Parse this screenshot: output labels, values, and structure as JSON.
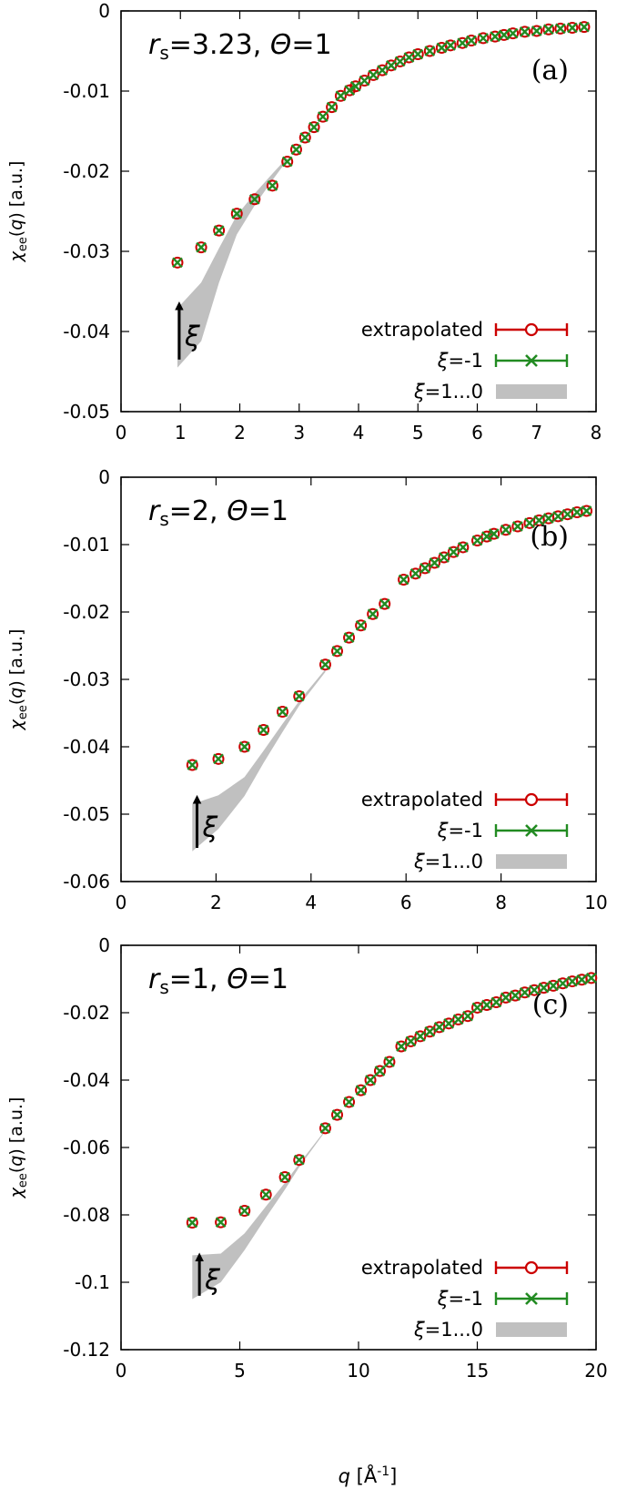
{
  "figure": {
    "x_axis_label": "q [Å⁻¹]",
    "colors": {
      "extrapolated": "#cc0000",
      "xi_minus1": "#228b22",
      "band": "#c0c0c0",
      "arrow": "#000000"
    }
  },
  "chart_data": [
    {
      "type": "scatter",
      "panel_label": "(a)",
      "annotation": "rs=3.23, Θ=1",
      "annotation_parts": {
        "r": "r",
        "s": "s",
        "rest": "=3.23, ",
        "theta": "Θ",
        "tail": "=1"
      },
      "arrow_label": "ξ",
      "ylabel": "χee(q) [a.u.]",
      "xlabel": "",
      "xlim": [
        0,
        8
      ],
      "ylim": [
        -0.05,
        0
      ],
      "xticks": [
        "0",
        "1",
        "2",
        "3",
        "4",
        "5",
        "6",
        "7",
        "8"
      ],
      "yticks": [
        "0",
        "-0.01",
        "-0.02",
        "-0.03",
        "-0.04",
        "-0.05"
      ],
      "grid": false,
      "legend_position": "bottom-right",
      "legend": [
        {
          "label": "extrapolated"
        },
        {
          "label": "ξ=-1"
        },
        {
          "label": "ξ=1...0"
        }
      ],
      "series": [
        {
          "name": "extrapolated",
          "marker": "circle",
          "x": [
            0.95,
            1.35,
            1.65,
            1.95,
            2.25,
            2.55,
            2.8,
            2.95,
            3.1,
            3.25,
            3.4,
            3.55,
            3.7,
            3.85,
            3.95,
            4.1,
            4.25,
            4.4,
            4.55,
            4.7,
            4.85,
            5.0,
            5.2,
            5.4,
            5.55,
            5.75,
            5.9,
            6.1,
            6.3,
            6.45,
            6.6,
            6.8,
            7.0,
            7.2,
            7.4,
            7.6,
            7.8
          ],
          "y": [
            -0.0314,
            -0.0295,
            -0.0274,
            -0.0253,
            -0.0235,
            -0.0218,
            -0.0188,
            -0.0173,
            -0.0158,
            -0.0145,
            -0.0132,
            -0.012,
            -0.0106,
            -0.0099,
            -0.0094,
            -0.0087,
            -0.008,
            -0.0074,
            -0.0068,
            -0.0063,
            -0.0058,
            -0.0054,
            -0.005,
            -0.0046,
            -0.0043,
            -0.004,
            -0.0037,
            -0.0034,
            -0.0032,
            -0.003,
            -0.0028,
            -0.0026,
            -0.0025,
            -0.0023,
            -0.0022,
            -0.0021,
            -0.002
          ]
        },
        {
          "name": "ξ=-1",
          "marker": "x",
          "x": [
            0.95,
            1.35,
            1.65,
            1.95,
            2.25,
            2.55,
            2.8,
            2.95,
            3.1,
            3.25,
            3.4,
            3.55,
            3.7,
            3.85,
            3.95,
            4.1,
            4.25,
            4.4,
            4.55,
            4.7,
            4.85,
            5.0,
            5.2,
            5.4,
            5.55,
            5.75,
            5.9,
            6.1,
            6.3,
            6.45,
            6.6,
            6.8,
            7.0,
            7.2,
            7.4,
            7.6,
            7.8
          ],
          "y": [
            -0.0314,
            -0.0295,
            -0.0274,
            -0.0253,
            -0.0235,
            -0.0218,
            -0.0188,
            -0.0173,
            -0.0158,
            -0.0145,
            -0.0132,
            -0.012,
            -0.0106,
            -0.0099,
            -0.0094,
            -0.0087,
            -0.008,
            -0.0074,
            -0.0068,
            -0.0063,
            -0.0058,
            -0.0054,
            -0.005,
            -0.0046,
            -0.0043,
            -0.004,
            -0.0037,
            -0.0034,
            -0.0032,
            -0.003,
            -0.0028,
            -0.0026,
            -0.0025,
            -0.0023,
            -0.0022,
            -0.0021,
            -0.002
          ]
        }
      ],
      "band": {
        "name": "ξ=1...0",
        "x": [
          0.95,
          1.35,
          1.65,
          1.95,
          2.25,
          2.55,
          2.8
        ],
        "upper": [
          -0.0371,
          -0.0339,
          -0.0296,
          -0.0255,
          -0.0228,
          -0.0203,
          -0.0183
        ],
        "lower": [
          -0.0445,
          -0.0412,
          -0.0339,
          -0.0279,
          -0.0243,
          -0.0211,
          -0.0186
        ]
      },
      "arrow": {
        "x": 0.98,
        "y_from": -0.0435,
        "y_to": -0.0368
      }
    },
    {
      "type": "scatter",
      "panel_label": "(b)",
      "annotation": "rs=2, Θ=1",
      "annotation_parts": {
        "r": "r",
        "s": "s",
        "rest": "=2, ",
        "theta": "Θ",
        "tail": "=1"
      },
      "arrow_label": "ξ",
      "ylabel": "χee(q) [a.u.]",
      "xlabel": "",
      "xlim": [
        0,
        10
      ],
      "ylim": [
        -0.06,
        0
      ],
      "xticks": [
        "0",
        "2",
        "4",
        "6",
        "8",
        "10"
      ],
      "yticks": [
        "0",
        "-0.01",
        "-0.02",
        "-0.03",
        "-0.04",
        "-0.05",
        "-0.06"
      ],
      "grid": false,
      "legend_position": "bottom-right",
      "legend": [
        {
          "label": "extrapolated"
        },
        {
          "label": "ξ=-1"
        },
        {
          "label": "ξ=1...0"
        }
      ],
      "series": [
        {
          "name": "extrapolated",
          "marker": "circle",
          "x": [
            1.5,
            2.05,
            2.6,
            3.0,
            3.4,
            3.75,
            4.3,
            4.55,
            4.8,
            5.05,
            5.3,
            5.55,
            5.95,
            6.2,
            6.4,
            6.6,
            6.8,
            7.0,
            7.2,
            7.5,
            7.7,
            7.85,
            8.1,
            8.35,
            8.6,
            8.8,
            9.0,
            9.2,
            9.4,
            9.6,
            9.8
          ],
          "y": [
            -0.0427,
            -0.0418,
            -0.04,
            -0.0375,
            -0.0348,
            -0.0325,
            -0.0278,
            -0.0258,
            -0.0238,
            -0.022,
            -0.0203,
            -0.0188,
            -0.0152,
            -0.0143,
            -0.0135,
            -0.0127,
            -0.0119,
            -0.0111,
            -0.0104,
            -0.0094,
            -0.0088,
            -0.0084,
            -0.0078,
            -0.0073,
            -0.0068,
            -0.0064,
            -0.0061,
            -0.0058,
            -0.0055,
            -0.0052,
            -0.005
          ]
        },
        {
          "name": "ξ=-1",
          "marker": "x",
          "x": [
            1.5,
            2.05,
            2.6,
            3.0,
            3.4,
            3.75,
            4.3,
            4.55,
            4.8,
            5.05,
            5.3,
            5.55,
            5.95,
            6.2,
            6.4,
            6.6,
            6.8,
            7.0,
            7.2,
            7.5,
            7.7,
            7.85,
            8.1,
            8.35,
            8.6,
            8.8,
            9.0,
            9.2,
            9.4,
            9.6,
            9.8
          ],
          "y": [
            -0.0427,
            -0.0418,
            -0.04,
            -0.0375,
            -0.0348,
            -0.0325,
            -0.0278,
            -0.0258,
            -0.0238,
            -0.022,
            -0.0203,
            -0.0188,
            -0.0152,
            -0.0143,
            -0.0135,
            -0.0127,
            -0.0119,
            -0.0111,
            -0.0104,
            -0.0094,
            -0.0088,
            -0.0084,
            -0.0078,
            -0.0073,
            -0.0068,
            -0.0064,
            -0.0061,
            -0.0058,
            -0.0055,
            -0.0052,
            -0.005
          ]
        }
      ],
      "band": {
        "name": "ξ=1...0",
        "x": [
          1.5,
          2.05,
          2.6,
          3.0,
          3.4,
          3.75,
          4.3
        ],
        "upper": [
          -0.0485,
          -0.0472,
          -0.0445,
          -0.0406,
          -0.0366,
          -0.0332,
          -0.0285
        ],
        "lower": [
          -0.0555,
          -0.0522,
          -0.0473,
          -0.0424,
          -0.0378,
          -0.0339,
          -0.0289
        ]
      },
      "arrow": {
        "x": 1.6,
        "y_from": -0.055,
        "y_to": -0.0478
      }
    },
    {
      "type": "scatter",
      "panel_label": "(c)",
      "annotation": "rs=1, Θ=1",
      "annotation_parts": {
        "r": "r",
        "s": "s",
        "rest": "=1, ",
        "theta": "Θ",
        "tail": "=1"
      },
      "arrow_label": "ξ",
      "ylabel": "χee(q) [a.u.]",
      "xlabel": "q [Å⁻¹]",
      "xlim": [
        0,
        20
      ],
      "ylim": [
        -0.12,
        0
      ],
      "xticks": [
        "0",
        "5",
        "10",
        "15",
        "20"
      ],
      "yticks": [
        "0",
        "-0.02",
        "-0.04",
        "-0.06",
        "-0.08",
        "-0.1",
        "-0.12"
      ],
      "grid": false,
      "legend_position": "bottom-right",
      "legend": [
        {
          "label": "extrapolated"
        },
        {
          "label": "ξ=-1"
        },
        {
          "label": "ξ=1...0"
        }
      ],
      "series": [
        {
          "name": "extrapolated",
          "marker": "circle",
          "x": [
            3.0,
            4.2,
            5.2,
            6.1,
            6.9,
            7.5,
            8.6,
            9.1,
            9.6,
            10.1,
            10.5,
            10.9,
            11.3,
            11.8,
            12.2,
            12.6,
            13.0,
            13.4,
            13.8,
            14.2,
            14.6,
            15.0,
            15.4,
            15.8,
            16.2,
            16.6,
            17.0,
            17.4,
            17.8,
            18.2,
            18.6,
            19.0,
            19.4,
            19.8
          ],
          "y": [
            -0.0823,
            -0.0822,
            -0.0788,
            -0.074,
            -0.0688,
            -0.0637,
            -0.0543,
            -0.0503,
            -0.0465,
            -0.043,
            -0.04,
            -0.0373,
            -0.0346,
            -0.03,
            -0.0285,
            -0.027,
            -0.0256,
            -0.0243,
            -0.0232,
            -0.022,
            -0.021,
            -0.0185,
            -0.0177,
            -0.0169,
            -0.0155,
            -0.0149,
            -0.014,
            -0.0133,
            -0.0126,
            -0.012,
            -0.0113,
            -0.0107,
            -0.0102,
            -0.0097
          ]
        },
        {
          "name": "ξ=-1",
          "marker": "x",
          "x": [
            3.0,
            4.2,
            5.2,
            6.1,
            6.9,
            7.5,
            8.6,
            9.1,
            9.6,
            10.1,
            10.5,
            10.9,
            11.3,
            11.8,
            12.2,
            12.6,
            13.0,
            13.4,
            13.8,
            14.2,
            14.6,
            15.0,
            15.4,
            15.8,
            16.2,
            16.6,
            17.0,
            17.4,
            17.8,
            18.2,
            18.6,
            19.0,
            19.4,
            19.8
          ],
          "y": [
            -0.0823,
            -0.0822,
            -0.0788,
            -0.074,
            -0.0688,
            -0.0637,
            -0.0543,
            -0.0503,
            -0.0465,
            -0.043,
            -0.04,
            -0.0373,
            -0.0346,
            -0.03,
            -0.0285,
            -0.027,
            -0.0256,
            -0.0243,
            -0.0232,
            -0.022,
            -0.021,
            -0.0185,
            -0.0177,
            -0.0169,
            -0.0155,
            -0.0149,
            -0.014,
            -0.0133,
            -0.0126,
            -0.012,
            -0.0113,
            -0.0107,
            -0.0102,
            -0.0097
          ]
        }
      ],
      "band": {
        "name": "ξ=1...0",
        "x": [
          3.0,
          4.2,
          5.2,
          6.1,
          6.9,
          7.5,
          8.6
        ],
        "upper": [
          -0.092,
          -0.0915,
          -0.0855,
          -0.0775,
          -0.0705,
          -0.0648,
          -0.0548
        ],
        "lower": [
          -0.105,
          -0.1,
          -0.0905,
          -0.0808,
          -0.0725,
          -0.0658,
          -0.0552
        ]
      },
      "arrow": {
        "x": 3.3,
        "y_from": -0.104,
        "y_to": -0.0925
      }
    }
  ]
}
